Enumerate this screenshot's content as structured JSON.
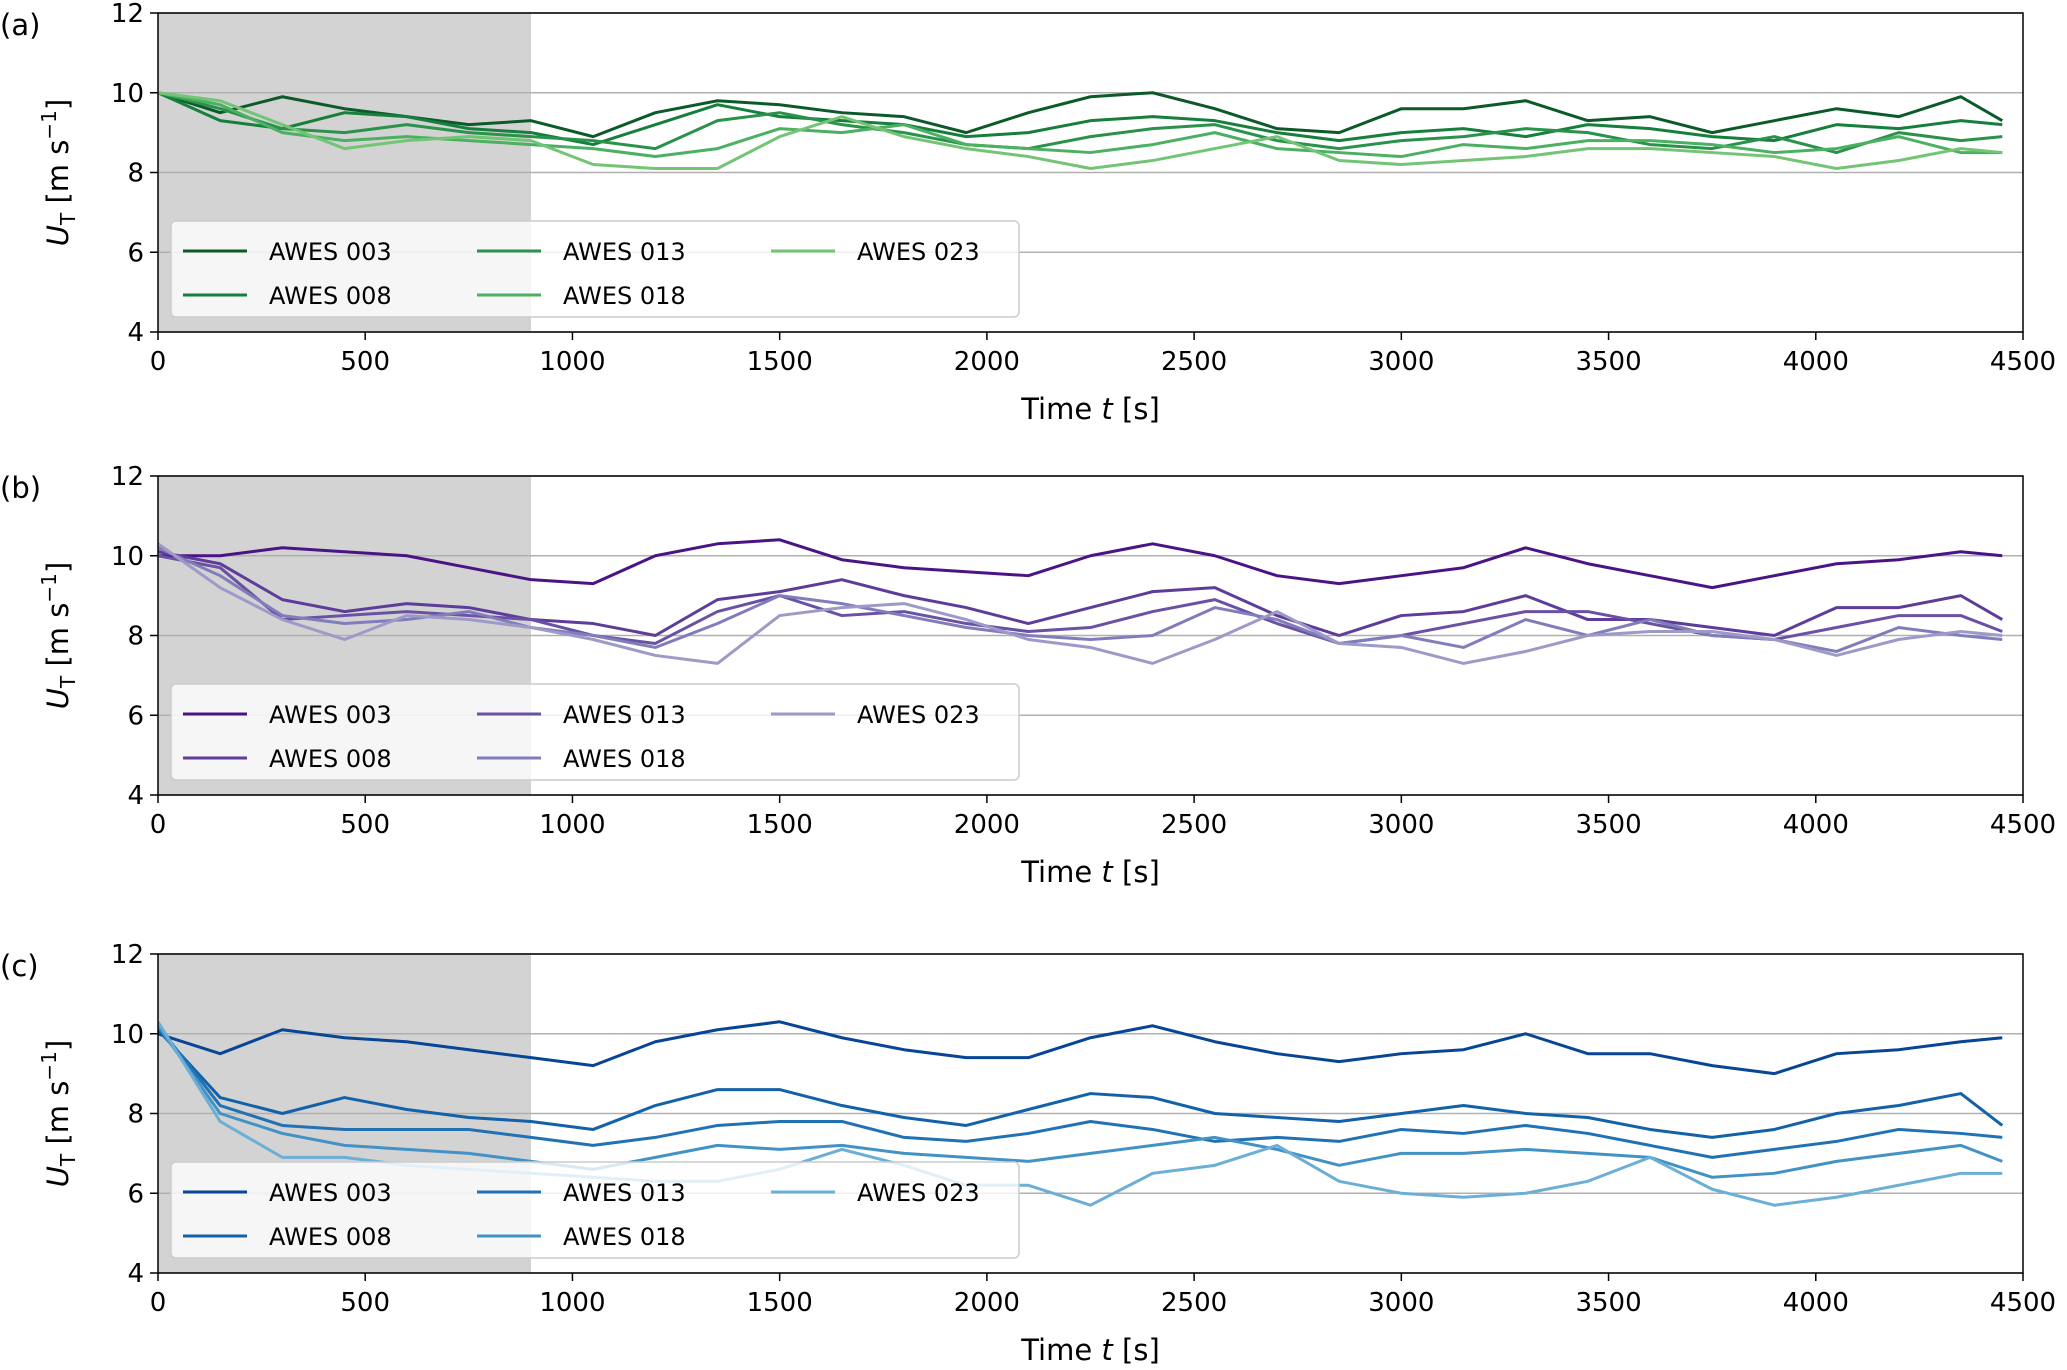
{
  "chart_data": [
    {
      "type": "line",
      "panel_label": "(a)",
      "xlabel": [
        "Time ",
        "t",
        " [s]"
      ],
      "ylabel": [
        "U",
        "T",
        " [m s",
        "−1",
        "]"
      ],
      "x": [
        0,
        150,
        300,
        450,
        600,
        750,
        900,
        1050,
        1200,
        1350,
        1500,
        1650,
        1800,
        1950,
        2100,
        2250,
        2400,
        2550,
        2700,
        2850,
        3000,
        3150,
        3300,
        3450,
        3600,
        3750,
        3900,
        4050,
        4200,
        4350,
        4450
      ],
      "series": [
        {
          "name": "AWES 003",
          "color": "#0b5a28",
          "values": [
            10.0,
            9.5,
            9.9,
            9.6,
            9.4,
            9.2,
            9.3,
            8.9,
            9.5,
            9.8,
            9.7,
            9.5,
            9.4,
            9.0,
            9.5,
            9.9,
            10.0,
            9.6,
            9.1,
            9.0,
            9.6,
            9.6,
            9.8,
            9.3,
            9.4,
            9.0,
            9.3,
            9.6,
            9.4,
            9.9,
            9.3
          ]
        },
        {
          "name": "AWES 008",
          "color": "#157f3b",
          "values": [
            10.0,
            9.3,
            9.1,
            9.5,
            9.4,
            9.1,
            9.0,
            8.7,
            9.2,
            9.7,
            9.4,
            9.3,
            9.2,
            8.9,
            9.0,
            9.3,
            9.4,
            9.3,
            9.0,
            8.8,
            9.0,
            9.1,
            8.9,
            9.2,
            9.1,
            8.9,
            8.8,
            9.2,
            9.1,
            9.3,
            9.2
          ]
        },
        {
          "name": "AWES 013",
          "color": "#2a924a",
          "values": [
            10.0,
            9.6,
            9.1,
            9.0,
            9.2,
            9.0,
            8.9,
            8.8,
            8.6,
            9.3,
            9.5,
            9.2,
            9.0,
            8.7,
            8.6,
            8.9,
            9.1,
            9.2,
            8.8,
            8.6,
            8.8,
            8.9,
            9.1,
            9.0,
            8.7,
            8.6,
            8.9,
            8.5,
            9.0,
            8.8,
            8.9
          ]
        },
        {
          "name": "AWES 018",
          "color": "#4bb062",
          "values": [
            10.0,
            9.7,
            9.0,
            8.8,
            8.9,
            8.8,
            8.7,
            8.6,
            8.4,
            8.6,
            9.1,
            9.0,
            9.2,
            8.7,
            8.6,
            8.5,
            8.7,
            9.0,
            8.6,
            8.5,
            8.4,
            8.7,
            8.6,
            8.8,
            8.8,
            8.7,
            8.5,
            8.6,
            8.9,
            8.5,
            8.5
          ]
        },
        {
          "name": "AWES 023",
          "color": "#74c476",
          "values": [
            10.0,
            9.8,
            9.2,
            8.6,
            8.8,
            8.9,
            8.8,
            8.2,
            8.1,
            8.1,
            8.9,
            9.4,
            8.9,
            8.6,
            8.4,
            8.1,
            8.3,
            8.6,
            8.9,
            8.3,
            8.2,
            8.3,
            8.4,
            8.6,
            8.6,
            8.5,
            8.4,
            8.1,
            8.3,
            8.6,
            8.5
          ]
        }
      ],
      "xlim": [
        0,
        4500
      ],
      "ylim": [
        4,
        12
      ],
      "xticks": [
        0,
        500,
        1000,
        1500,
        2000,
        2500,
        3000,
        3500,
        4000,
        4500
      ],
      "yticks": [
        4,
        6,
        8,
        10,
        12
      ],
      "shade": [
        0,
        900
      ],
      "shade_color": "#d3d3d3",
      "grid": true
    },
    {
      "type": "line",
      "panel_label": "(b)",
      "xlabel": [
        "Time ",
        "t",
        " [s]"
      ],
      "ylabel": [
        "U",
        "T",
        " [m s",
        "−1",
        "]"
      ],
      "x": [
        0,
        150,
        300,
        450,
        600,
        750,
        900,
        1050,
        1200,
        1350,
        1500,
        1650,
        1800,
        1950,
        2100,
        2250,
        2400,
        2550,
        2700,
        2850,
        3000,
        3150,
        3300,
        3450,
        3600,
        3750,
        3900,
        4050,
        4200,
        4350,
        4450
      ],
      "series": [
        {
          "name": "AWES 003",
          "color": "#4a1486",
          "values": [
            10.0,
            10.0,
            10.2,
            10.1,
            10.0,
            9.7,
            9.4,
            9.3,
            10.0,
            10.3,
            10.4,
            9.9,
            9.7,
            9.6,
            9.5,
            10.0,
            10.3,
            10.0,
            9.5,
            9.3,
            9.5,
            9.7,
            10.2,
            9.8,
            9.5,
            9.2,
            9.5,
            9.8,
            9.9,
            10.1,
            10.0
          ]
        },
        {
          "name": "AWES 008",
          "color": "#5e3c99",
          "values": [
            10.1,
            9.8,
            8.9,
            8.6,
            8.8,
            8.7,
            8.4,
            8.3,
            8.0,
            8.9,
            9.1,
            9.4,
            9.0,
            8.7,
            8.3,
            8.7,
            9.1,
            9.2,
            8.5,
            8.0,
            8.5,
            8.6,
            9.0,
            8.4,
            8.4,
            8.2,
            8.0,
            8.7,
            8.7,
            9.0,
            8.4
          ]
        },
        {
          "name": "AWES 013",
          "color": "#6a51a3",
          "values": [
            10.0,
            9.7,
            8.4,
            8.5,
            8.6,
            8.5,
            8.4,
            8.0,
            7.8,
            8.6,
            9.0,
            8.5,
            8.6,
            8.3,
            8.1,
            8.2,
            8.6,
            8.9,
            8.3,
            7.8,
            8.0,
            8.3,
            8.6,
            8.6,
            8.3,
            8.0,
            7.9,
            8.2,
            8.5,
            8.5,
            8.1
          ]
        },
        {
          "name": "AWES 018",
          "color": "#807dba",
          "values": [
            10.2,
            9.5,
            8.5,
            8.3,
            8.4,
            8.6,
            8.2,
            8.0,
            7.7,
            8.3,
            9.0,
            8.8,
            8.5,
            8.2,
            8.0,
            7.9,
            8.0,
            8.7,
            8.4,
            7.8,
            8.0,
            7.7,
            8.4,
            8.0,
            8.4,
            8.0,
            7.9,
            7.6,
            8.2,
            8.0,
            7.9
          ]
        },
        {
          "name": "AWES 023",
          "color": "#9e9ac8",
          "values": [
            10.3,
            9.2,
            8.4,
            7.9,
            8.5,
            8.4,
            8.2,
            7.9,
            7.5,
            7.3,
            8.5,
            8.7,
            8.8,
            8.4,
            7.9,
            7.7,
            7.3,
            7.9,
            8.6,
            7.8,
            7.7,
            7.3,
            7.6,
            8.0,
            8.1,
            8.1,
            7.9,
            7.5,
            7.9,
            8.1,
            8.0
          ]
        }
      ],
      "xlim": [
        0,
        4500
      ],
      "ylim": [
        4,
        12
      ],
      "xticks": [
        0,
        500,
        1000,
        1500,
        2000,
        2500,
        3000,
        3500,
        4000,
        4500
      ],
      "yticks": [
        4,
        6,
        8,
        10,
        12
      ],
      "shade": [
        0,
        900
      ],
      "shade_color": "#d3d3d3",
      "grid": true
    },
    {
      "type": "line",
      "panel_label": "(c)",
      "xlabel": [
        "Time ",
        "t",
        " [s]"
      ],
      "ylabel": [
        "U",
        "T",
        " [m s",
        "−1",
        "]"
      ],
      "x": [
        0,
        150,
        300,
        450,
        600,
        750,
        900,
        1050,
        1200,
        1350,
        1500,
        1650,
        1800,
        1950,
        2100,
        2250,
        2400,
        2550,
        2700,
        2850,
        3000,
        3150,
        3300,
        3450,
        3600,
        3750,
        3900,
        4050,
        4200,
        4350,
        4450
      ],
      "series": [
        {
          "name": "AWES 003",
          "color": "#084594",
          "values": [
            10.0,
            9.5,
            10.1,
            9.9,
            9.8,
            9.6,
            9.4,
            9.2,
            9.8,
            10.1,
            10.3,
            9.9,
            9.6,
            9.4,
            9.4,
            9.9,
            10.2,
            9.8,
            9.5,
            9.3,
            9.5,
            9.6,
            10.0,
            9.5,
            9.5,
            9.2,
            9.0,
            9.5,
            9.6,
            9.8,
            9.9
          ]
        },
        {
          "name": "AWES 008",
          "color": "#1361a8",
          "values": [
            10.1,
            8.4,
            8.0,
            8.4,
            8.1,
            7.9,
            7.8,
            7.6,
            8.2,
            8.6,
            8.6,
            8.2,
            7.9,
            7.7,
            8.1,
            8.5,
            8.4,
            8.0,
            7.9,
            7.8,
            8.0,
            8.2,
            8.0,
            7.9,
            7.6,
            7.4,
            7.6,
            8.0,
            8.2,
            8.5,
            7.7
          ]
        },
        {
          "name": "AWES 013",
          "color": "#2171b5",
          "values": [
            10.2,
            8.2,
            7.7,
            7.6,
            7.6,
            7.6,
            7.4,
            7.2,
            7.4,
            7.7,
            7.8,
            7.8,
            7.4,
            7.3,
            7.5,
            7.8,
            7.6,
            7.3,
            7.4,
            7.3,
            7.6,
            7.5,
            7.7,
            7.5,
            7.2,
            6.9,
            7.1,
            7.3,
            7.6,
            7.5,
            7.4
          ]
        },
        {
          "name": "AWES 018",
          "color": "#4292c6",
          "values": [
            10.2,
            8.0,
            7.5,
            7.2,
            7.1,
            7.0,
            6.8,
            6.6,
            6.9,
            7.2,
            7.1,
            7.2,
            7.0,
            6.9,
            6.8,
            7.0,
            7.2,
            7.4,
            7.1,
            6.7,
            7.0,
            7.0,
            7.1,
            7.0,
            6.9,
            6.4,
            6.5,
            6.8,
            7.0,
            7.2,
            6.8
          ]
        },
        {
          "name": "AWES 023",
          "color": "#6baed6",
          "values": [
            10.3,
            7.8,
            6.9,
            6.9,
            6.7,
            6.6,
            6.5,
            6.4,
            6.3,
            6.3,
            6.6,
            7.1,
            6.7,
            6.2,
            6.2,
            5.7,
            6.5,
            6.7,
            7.2,
            6.3,
            6.0,
            5.9,
            6.0,
            6.3,
            6.9,
            6.1,
            5.7,
            5.9,
            6.2,
            6.5,
            6.5
          ]
        }
      ],
      "xlim": [
        0,
        4500
      ],
      "ylim": [
        4,
        12
      ],
      "xticks": [
        0,
        500,
        1000,
        1500,
        2000,
        2500,
        3000,
        3500,
        4000,
        4500
      ],
      "yticks": [
        4,
        6,
        8,
        10,
        12
      ],
      "shade": [
        0,
        900
      ],
      "shade_color": "#d3d3d3",
      "grid": true
    }
  ]
}
